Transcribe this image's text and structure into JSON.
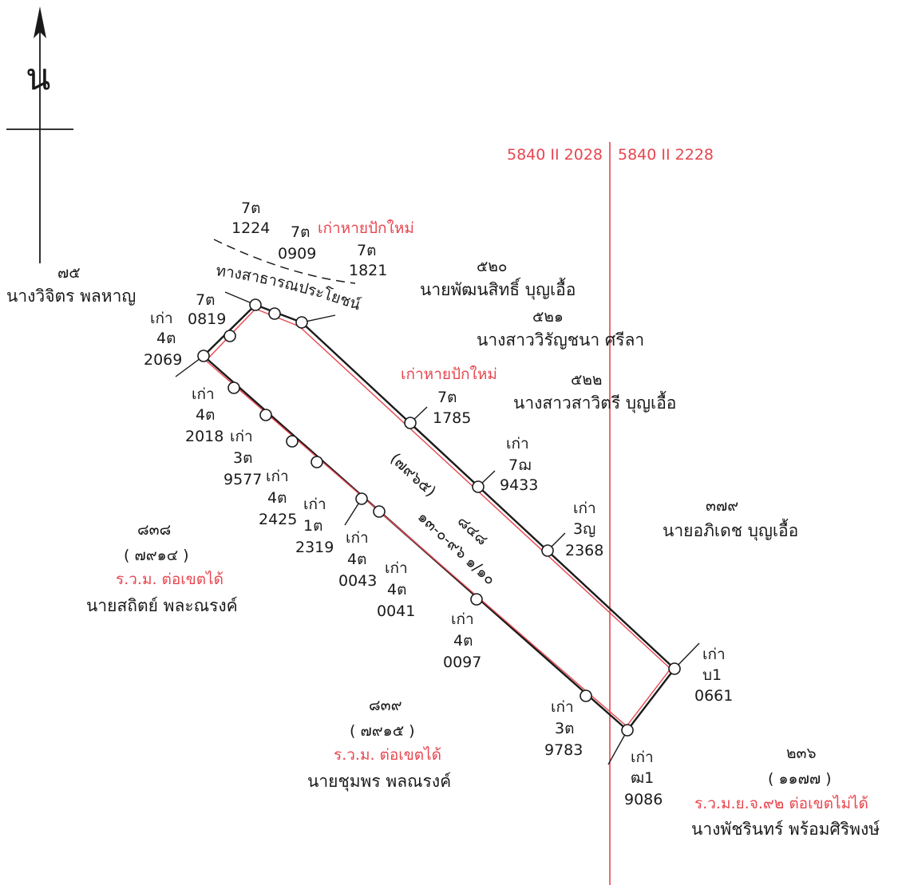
{
  "north_label": "น",
  "grid_left": "5840 II 2028",
  "grid_right": "5840 II 2228",
  "road": "ทางสาธารณประโยชน์",
  "lost_1": "เก่าหายปักใหม่",
  "lost_2": "เก่าหายปักใหม่",
  "parcel": {
    "number": "๘๔๘",
    "code": "(๗๙๖๕)",
    "area": "๑๓-๐-๙๖ ๑/๑๐"
  },
  "owners": {
    "p75_num": "๗๕",
    "p75_name": "นางวิจิตร พลหาญ",
    "p520_num": "๕๒๐",
    "p520_name": "นายพัฒนสิทธิ์ บุญเอื้อ",
    "p521_num": "๕๒๑",
    "p521_name": "นางสาววิรัญชนา ศรีลา",
    "p522_num": "๕๒๒",
    "p522_name": "นางสาวสาวิตรี บุญเอื้อ",
    "p379_num": "๓๗๙",
    "p379_name": "นายอภิเดช บุญเอื้อ",
    "p838_num": "๘๓๘",
    "p838_code": "( ๗๙๑๔ )",
    "p838_status": "ร.ว.ม. ต่อเขตได้",
    "p838_name": "นายสถิตย์ พละณรงค์",
    "p839_num": "๘๓๙",
    "p839_code": "( ๗๙๑๕ )",
    "p839_status": "ร.ว.ม. ต่อเขตได้",
    "p839_name": "นายชุมพร พลณรงค์",
    "p236_num": "๒๓๖",
    "p236_code": "( ๑๑๗๗ )",
    "p236_status": "ร.ว.ม.ย.จ.๙๒ ต่อเขตไม่ได้",
    "p236_name": "นางพัชรินทร์ พร้อมศิริพงษ์"
  },
  "markers": {
    "m7t1224_a": "7ต",
    "m7t1224_b": "1224",
    "m7t0909_a": "7ต",
    "m7t0909_b": "0909",
    "m7t1821_a": "7ต",
    "m7t1821_b": "1821",
    "m7t0819_a": "7ต",
    "m7t0819_b": "0819",
    "m4t2069_a": "เก่า",
    "m4t2069_b": "4ต",
    "m4t2069_c": "2069",
    "m4t2018_a": "เก่า",
    "m4t2018_b": "4ต",
    "m4t2018_c": "2018",
    "m3t9577_a": "เก่า",
    "m3t9577_b": "3ต",
    "m3t9577_c": "9577",
    "m4t2425_a": "เก่า",
    "m4t2425_b": "4ต",
    "m4t2425_c": "2425",
    "m1t2319_a": "เก่า",
    "m1t2319_b": "1ต",
    "m1t2319_c": "2319",
    "m4t0043_a": "เก่า",
    "m4t0043_b": "4ต",
    "m4t0043_c": "0043",
    "m4t0041_a": "เก่า",
    "m4t0041_b": "4ต",
    "m4t0041_c": "0041",
    "m4t0097_a": "เก่า",
    "m4t0097_b": "4ต",
    "m4t0097_c": "0097",
    "m3t9783_a": "เก่า",
    "m3t9783_b": "3ต",
    "m3t9783_c": "9783",
    "m7t1785_a": "7ต",
    "m7t1785_b": "1785",
    "m7n9433_a": "เก่า",
    "m7n9433_b": "7ฌ",
    "m7n9433_c": "9433",
    "m3y2368_a": "เก่า",
    "m3y2368_b": "3ญ",
    "m3y2368_c": "2368",
    "mb0661_a": "เก่า",
    "mb0661_b": "บ1",
    "mb0661_c": "0661",
    "mf9086_a": "เก่า",
    "mf9086_b": "ฒ1",
    "mf9086_c": "9086"
  }
}
